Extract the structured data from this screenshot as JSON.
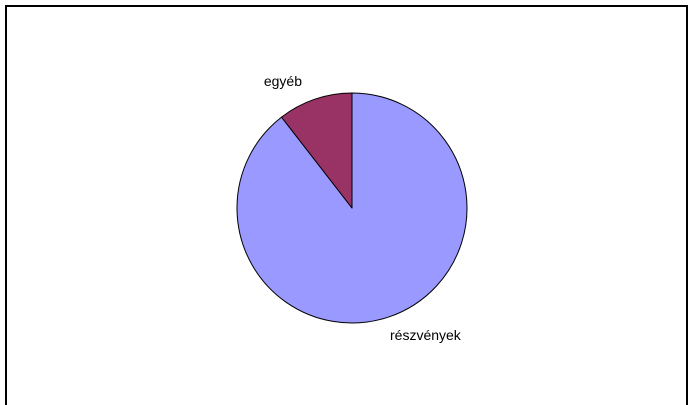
{
  "chart_data": {
    "type": "pie",
    "title": "",
    "start_angle_deg": 0,
    "direction": "clockwise",
    "slices": [
      {
        "label": "részvények",
        "value": 89.5,
        "color": "#9999ff"
      },
      {
        "label": "egyéb",
        "value": 10.5,
        "color": "#993366"
      }
    ],
    "stroke_color": "#000000",
    "legend": "none"
  }
}
